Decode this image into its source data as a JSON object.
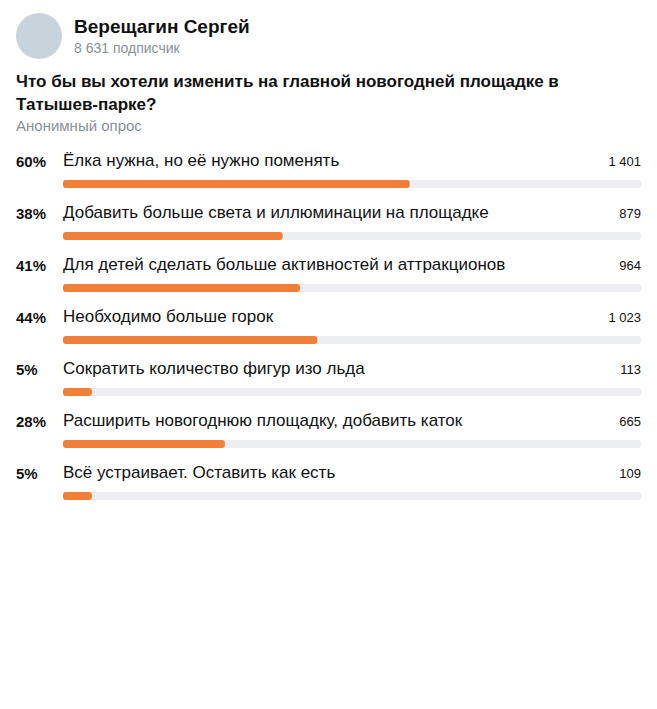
{
  "header": {
    "author": "Верещагин Сергей",
    "subscribers": "8 631 подписчик"
  },
  "chart_data": {
    "type": "bar",
    "orientation": "horizontal",
    "title": "Что бы вы хотели изменить на главной новогодней площадке в Татышев-парке?",
    "subtitle": "Анонимный опрос",
    "categories": [
      "Ёлка нужна, но её нужно поменять",
      "Добавить больше света и иллюминации на площадке",
      "Для детей сделать больше активностей и аттракционов",
      "Необходимо больше горок",
      "Сократить количество фигур изо льда",
      "Расширить новогоднюю площадку, добавить каток",
      "Всё устраивает. Оставить как есть"
    ],
    "values": [
      60,
      38,
      41,
      44,
      5,
      28,
      5
    ],
    "value_labels": [
      "60%",
      "38%",
      "41%",
      "44%",
      "5%",
      "28%",
      "5%"
    ],
    "counts": [
      1401,
      879,
      964,
      1023,
      113,
      665,
      109
    ],
    "count_labels": [
      "1 401",
      "879",
      "964",
      "1 023",
      "113",
      "665",
      "109"
    ],
    "xlim": [
      0,
      100
    ],
    "color": "#ef7f39",
    "data_labels": true,
    "tick_labels": false
  }
}
